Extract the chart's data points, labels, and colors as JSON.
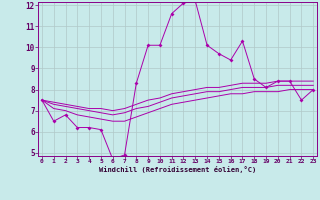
{
  "title": "",
  "xlabel": "Windchill (Refroidissement éolien,°C)",
  "bg_color": "#c8eaea",
  "grid_color": "#b0c8c8",
  "line_color": "#aa00aa",
  "x_values": [
    0,
    1,
    2,
    3,
    4,
    5,
    6,
    7,
    8,
    9,
    10,
    11,
    12,
    13,
    14,
    15,
    16,
    17,
    18,
    19,
    20,
    21,
    22,
    23
  ],
  "line1_y": [
    7.5,
    6.5,
    6.8,
    6.2,
    6.2,
    6.1,
    4.7,
    4.9,
    8.3,
    10.1,
    10.1,
    11.6,
    12.1,
    12.2,
    10.1,
    9.7,
    9.4,
    10.3,
    8.5,
    8.1,
    8.4,
    8.4,
    7.5,
    8.0
  ],
  "line2_y": [
    7.5,
    7.4,
    7.3,
    7.2,
    7.1,
    7.1,
    7.0,
    7.1,
    7.3,
    7.5,
    7.6,
    7.8,
    7.9,
    8.0,
    8.1,
    8.1,
    8.2,
    8.3,
    8.3,
    8.3,
    8.4,
    8.4,
    8.4,
    8.4
  ],
  "line3_y": [
    7.5,
    7.3,
    7.2,
    7.1,
    7.0,
    6.9,
    6.8,
    6.9,
    7.1,
    7.2,
    7.4,
    7.6,
    7.7,
    7.8,
    7.9,
    7.9,
    8.0,
    8.1,
    8.1,
    8.1,
    8.2,
    8.2,
    8.2,
    8.2
  ],
  "line4_y": [
    7.5,
    7.1,
    7.0,
    6.8,
    6.7,
    6.6,
    6.5,
    6.5,
    6.7,
    6.9,
    7.1,
    7.3,
    7.4,
    7.5,
    7.6,
    7.7,
    7.8,
    7.8,
    7.9,
    7.9,
    7.9,
    8.0,
    8.0,
    8.0
  ],
  "ylim_min": 5,
  "ylim_max": 12,
  "xlim_min": 0,
  "xlim_max": 23,
  "yticks": [
    5,
    6,
    7,
    8,
    9,
    10,
    11,
    12
  ],
  "xticks": [
    0,
    1,
    2,
    3,
    4,
    5,
    6,
    7,
    8,
    9,
    10,
    11,
    12,
    13,
    14,
    15,
    16,
    17,
    18,
    19,
    20,
    21,
    22,
    23
  ]
}
